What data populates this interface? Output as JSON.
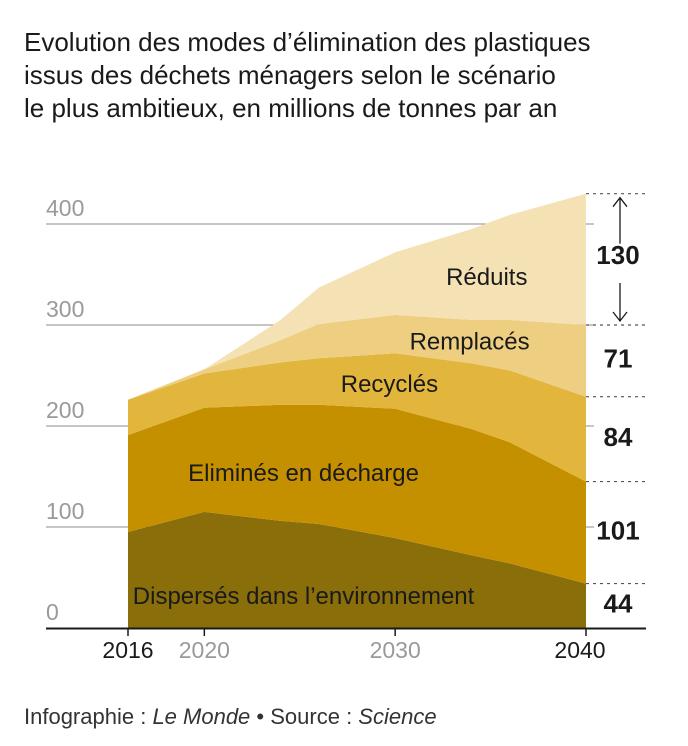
{
  "title_lines": [
    "Evolution des modes d’élimination des plastiques",
    "issus des déchets ménagers selon le scénario",
    "le plus ambitieux, en millions de tonnes par an"
  ],
  "footer": {
    "credit": "Infographie : ",
    "credit_name": "Le Monde",
    "bullet": "•",
    "source_label": "Source : ",
    "source_name": "Science"
  },
  "chart_data": {
    "type": "area",
    "stacked": true,
    "x": [
      2016,
      2020,
      2024,
      2026,
      2030,
      2034,
      2036,
      2040
    ],
    "xlim": [
      2016,
      2040
    ],
    "ylim": [
      0,
      400
    ],
    "y_ticks": [
      0,
      100,
      200,
      300,
      400
    ],
    "x_ticks": [
      {
        "value": 2016,
        "label": "2016",
        "emphasis": true
      },
      {
        "value": 2020,
        "label": "2020",
        "emphasis": false
      },
      {
        "value": 2030,
        "label": "2030",
        "emphasis": false
      },
      {
        "value": 2040,
        "label": "2040",
        "emphasis": true
      }
    ],
    "grid": true,
    "series": [
      {
        "name": "Dispersés dans l’environnement",
        "color": "#8a6e0a",
        "values": [
          95,
          115,
          106,
          103,
          89,
          72,
          64,
          44
        ],
        "label_at": {
          "x": 2025.2,
          "y": 30
        }
      },
      {
        "name": "Eliminés en décharge",
        "color": "#c49000",
        "values": [
          96,
          103,
          115,
          118,
          128,
          125,
          120,
          101
        ],
        "label_at": {
          "x": 2025.2,
          "y": 152
        }
      },
      {
        "name": "Recyclés",
        "color": "#e2b53c",
        "values": [
          35,
          34,
          42,
          46,
          55,
          65,
          71,
          84
        ],
        "label_at": {
          "x": 2029.7,
          "y": 240
        }
      },
      {
        "name": "Remplacés",
        "color": "#eecf82",
        "values": [
          0,
          4,
          22,
          34,
          38,
          43,
          50,
          71
        ],
        "label_at": {
          "x": 2033.9,
          "y": 282
        }
      },
      {
        "name": "Réduits",
        "color": "#f4e1b4",
        "values": [
          0,
          0,
          20,
          36,
          62,
          90,
          104,
          130
        ],
        "label_at": {
          "x": 2034.8,
          "y": 346
        }
      }
    ],
    "end_values": [
      {
        "label": "44",
        "y_mid": 22
      },
      {
        "label": "101",
        "y_mid": 94.5
      },
      {
        "label": "84",
        "y_mid": 187
      },
      {
        "label": "71",
        "y_mid": 264.5
      },
      {
        "label": "130",
        "y_mid": 367
      }
    ],
    "end_boundaries": [
      0,
      44,
      145,
      229,
      300,
      430
    ],
    "bracket": {
      "from": 300,
      "to": 430
    }
  }
}
